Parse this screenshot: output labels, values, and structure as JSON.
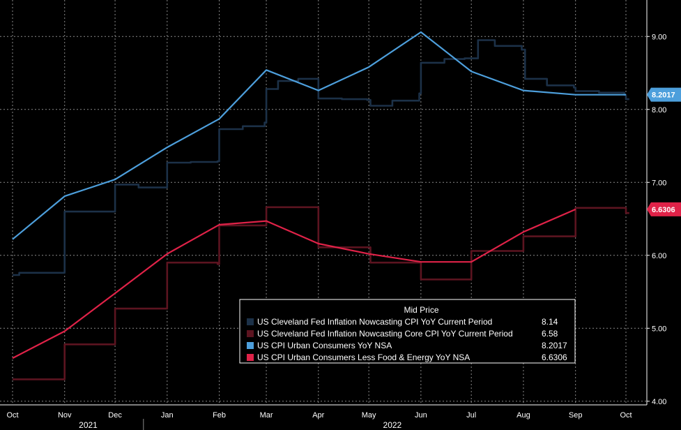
{
  "chart_data": {
    "type": "line",
    "title": "",
    "xlabel": "",
    "ylabel": "",
    "ylim": [
      3.95,
      9.5
    ],
    "y_ticks": [
      "4.00",
      "5.00",
      "6.00",
      "7.00",
      "8.00",
      "9.00"
    ],
    "y_tick_values": [
      4,
      5,
      6,
      7,
      8,
      9
    ],
    "x_ticks": [
      "Oct",
      "Nov",
      "Dec",
      "Jan",
      "Feb",
      "Mar",
      "Apr",
      "May",
      "Jun",
      "Jul",
      "Aug",
      "Sep",
      "Oct"
    ],
    "x_tick_values": [
      "2021-10-01",
      "2021-11-01",
      "2021-12-01",
      "2022-01-01",
      "2022-02-01",
      "2022-03-01",
      "2022-04-01",
      "2022-05-01",
      "2022-06-01",
      "2022-07-01",
      "2022-08-01",
      "2022-09-01",
      "2022-10-01"
    ],
    "year_labels": [
      {
        "label": "2021",
        "date": "2021-11-15"
      },
      {
        "label": "2022",
        "date": "2022-05-15"
      }
    ],
    "grid": true,
    "legend_position": "bottom-right",
    "legend_title": "Mid Price",
    "series": [
      {
        "name": "US Cleveland Fed Inflation Nowcasting CPI YoY Current Period",
        "last_value": "8.14",
        "color": "#1c3148",
        "step": true,
        "x": [
          "2021-10-01",
          "2021-10-05",
          "2021-10-15",
          "2021-10-29",
          "2021-11-01",
          "2021-11-15",
          "2021-11-30",
          "2021-12-01",
          "2021-12-15",
          "2021-12-31",
          "2022-01-01",
          "2022-01-15",
          "2022-01-31",
          "2022-02-01",
          "2022-02-15",
          "2022-02-28",
          "2022-03-01",
          "2022-03-08",
          "2022-03-20",
          "2022-04-01",
          "2022-04-15",
          "2022-04-30",
          "2022-05-02",
          "2022-05-15",
          "2022-05-31",
          "2022-06-01",
          "2022-06-15",
          "2022-06-27",
          "2022-07-05",
          "2022-07-15",
          "2022-07-31",
          "2022-08-02",
          "2022-08-15",
          "2022-08-31",
          "2022-09-01",
          "2022-09-15",
          "2022-09-30",
          "2022-10-01",
          "2022-10-03"
        ],
        "y": [
          5.73,
          5.76,
          5.76,
          5.76,
          6.6,
          6.6,
          6.6,
          6.97,
          6.93,
          6.93,
          7.27,
          7.28,
          7.29,
          7.73,
          7.77,
          7.82,
          8.28,
          8.39,
          8.42,
          8.15,
          8.14,
          8.13,
          8.05,
          8.12,
          8.22,
          8.64,
          8.69,
          8.7,
          8.95,
          8.87,
          8.82,
          8.42,
          8.33,
          8.3,
          8.25,
          8.23,
          8.2,
          8.14,
          8.14
        ]
      },
      {
        "name": "US Cleveland Fed Inflation Nowcasting Core CPI YoY Current Period",
        "last_value": "6.58",
        "color": "#5c1420",
        "step": true,
        "x": [
          "2021-10-01",
          "2021-10-29",
          "2021-11-01",
          "2021-11-15",
          "2021-11-30",
          "2021-12-01",
          "2021-12-15",
          "2021-12-31",
          "2022-01-01",
          "2022-01-15",
          "2022-01-31",
          "2022-02-01",
          "2022-02-15",
          "2022-02-28",
          "2022-03-01",
          "2022-03-15",
          "2022-03-31",
          "2022-04-01",
          "2022-04-15",
          "2022-04-30",
          "2022-05-02",
          "2022-05-15",
          "2022-05-31",
          "2022-06-01",
          "2022-06-15",
          "2022-06-30",
          "2022-07-01",
          "2022-07-15",
          "2022-07-31",
          "2022-08-01",
          "2022-08-15",
          "2022-08-31",
          "2022-09-01",
          "2022-09-15",
          "2022-09-30",
          "2022-10-01",
          "2022-10-03"
        ],
        "y": [
          4.3,
          4.3,
          4.78,
          4.78,
          4.78,
          5.27,
          5.27,
          5.27,
          5.9,
          5.9,
          5.88,
          6.41,
          6.41,
          6.41,
          6.66,
          6.66,
          6.66,
          6.11,
          6.11,
          6.11,
          5.9,
          5.9,
          5.9,
          5.67,
          5.67,
          5.67,
          6.06,
          6.06,
          6.06,
          6.26,
          6.26,
          6.26,
          6.65,
          6.65,
          6.65,
          6.58,
          6.58
        ]
      },
      {
        "name": "US CPI Urban Consumers YoY NSA",
        "last_value": "8.2017",
        "color": "#4d9fdc",
        "step": false,
        "x": [
          "2021-10-01",
          "2021-11-01",
          "2021-12-01",
          "2022-01-01",
          "2022-02-01",
          "2022-03-01",
          "2022-04-01",
          "2022-05-01",
          "2022-06-01",
          "2022-07-01",
          "2022-08-01",
          "2022-09-01",
          "2022-10-01"
        ],
        "y": [
          6.22,
          6.81,
          7.04,
          7.48,
          7.87,
          8.54,
          8.26,
          8.58,
          9.06,
          8.52,
          8.26,
          8.2017,
          8.2017
        ]
      },
      {
        "name": "US CPI Urban Consumers Less Food & Energy YoY NSA",
        "last_value": "6.6306",
        "color": "#e02248",
        "step": false,
        "x": [
          "2021-10-01",
          "2021-11-01",
          "2021-12-01",
          "2022-01-01",
          "2022-02-01",
          "2022-03-01",
          "2022-04-01",
          "2022-05-01",
          "2022-06-01",
          "2022-07-01",
          "2022-08-01",
          "2022-09-01"
        ],
        "y": [
          4.59,
          4.96,
          5.48,
          6.02,
          6.42,
          6.47,
          6.16,
          6.02,
          5.91,
          5.91,
          6.32,
          6.6306
        ]
      }
    ],
    "badges": [
      {
        "series_index": 2,
        "label": "8.2017",
        "value": 8.2017,
        "color": "#4d9fdc"
      },
      {
        "series_index": 3,
        "label": "6.6306",
        "value": 6.6306,
        "color": "#e02248"
      }
    ]
  },
  "colors": {
    "background": "#000000",
    "grid": "#8a8a8a",
    "axis_text": "#ffffff",
    "legend_border": "#ffffff"
  }
}
